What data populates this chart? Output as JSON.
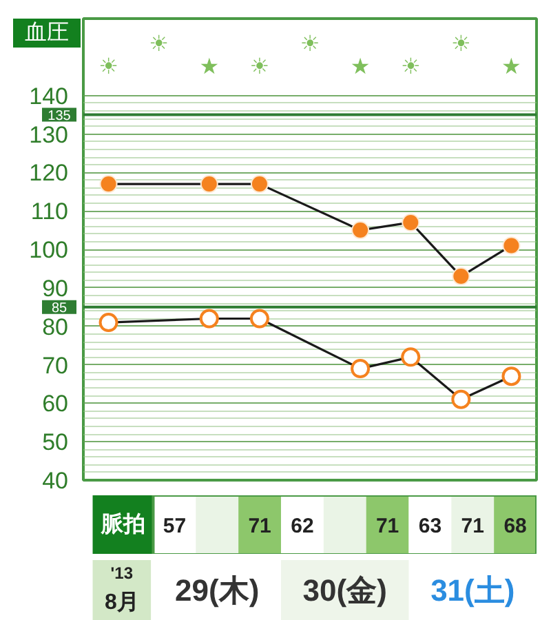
{
  "chart_data": [
    {
      "type": "line",
      "title": "血圧",
      "categories": [
        "☀",
        "☀",
        "★",
        "☀",
        "☀",
        "★",
        "☀",
        "☀",
        "★"
      ],
      "series": [
        {
          "color": "#f5821f",
          "values": [
            117,
            null,
            117,
            117,
            null,
            105,
            107,
            93,
            101
          ]
        },
        {
          "color": "#f5821f",
          "values": [
            81,
            null,
            82,
            82,
            null,
            69,
            72,
            61,
            67
          ]
        }
      ],
      "ylim": [
        40,
        160
      ],
      "yticks": [
        40,
        {
          "value": 42,
          "label": null
        },
        {
          "value": 44,
          "label": null
        },
        {
          "value": 46,
          "label": null
        },
        {
          "value": 48,
          "label": null
        },
        50,
        {
          "value": 52,
          "label": null
        },
        {
          "value": 54,
          "label": null
        },
        {
          "value": 56,
          "label": null
        },
        {
          "value": 58,
          "label": null
        },
        60,
        {
          "value": 62,
          "label": null
        },
        {
          "value": 64,
          "label": null
        },
        {
          "value": 66,
          "label": null
        },
        {
          "value": 68,
          "label": null
        },
        70,
        {
          "value": 72,
          "label": null
        },
        {
          "value": 74,
          "label": null
        },
        {
          "value": 76,
          "label": null
        },
        {
          "value": 78,
          "label": null
        },
        80,
        {
          "value": 82,
          "label": null
        },
        {
          "value": 84,
          "label": null
        },
        {
          "value": 86,
          "label": null
        },
        {
          "value": 88,
          "label": null
        },
        90,
        {
          "value": 92,
          "label": null
        },
        {
          "value": 94,
          "label": null
        },
        {
          "value": 96,
          "label": null
        },
        {
          "value": 98,
          "label": null
        },
        100,
        {
          "value": 102,
          "label": null
        },
        {
          "value": 104,
          "label": null
        },
        {
          "value": 106,
          "label": null
        },
        {
          "value": 108,
          "label": null
        },
        110,
        {
          "value": 112,
          "label": null
        },
        {
          "value": 114,
          "label": null
        },
        {
          "value": 116,
          "label": null
        },
        {
          "value": 118,
          "label": null
        },
        120,
        {
          "value": 122,
          "label": null
        },
        {
          "value": 124,
          "label": null
        },
        {
          "value": 126,
          "label": null
        },
        {
          "value": 128,
          "label": null
        },
        130,
        {
          "value": 132,
          "label": null
        },
        {
          "value": 134,
          "label": null
        },
        {
          "value": 136,
          "label": null
        },
        {
          "value": 138,
          "label": null
        },
        140
      ],
      "ref_lines": [
        {
          "axis": "y",
          "value": 135,
          "label": "135",
          "color": "#2e7d32"
        },
        {
          "axis": "y",
          "value": 85,
          "label": "85",
          "color": "#2e7d32"
        }
      ],
      "grid": "y",
      "marker": "circle"
    },
    {
      "type": "other",
      "title": "脈拍",
      "values": [
        57,
        null,
        71,
        62,
        null,
        71,
        63,
        71,
        68
      ],
      "data_labels": true
    },
    {
      "type": "other",
      "annotations": [
        "'13",
        "8月",
        "29(木)",
        "30(金)",
        "31(土)"
      ]
    }
  ]
}
